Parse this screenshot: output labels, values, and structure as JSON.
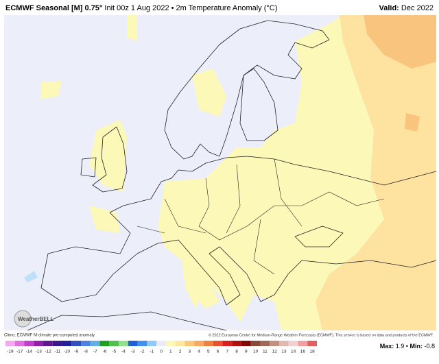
{
  "header": {
    "title_bold": "ECMWF Seasonal [M] 0.75°",
    "title_rest": "Init 00z 1 Aug 2022 • 2m Temperature Anomaly (°C)",
    "valid_label": "Valid:",
    "valid_value": "Dec 2022"
  },
  "logo": "WeatherBELL",
  "footer": {
    "climo": "Climo: ECMWF M-climate pre-computed anomaly",
    "copyright": "© 2022 European Centre for Medium-Range Weather Forecasts (ECMWF). This service is based on data and products of the ECMWF."
  },
  "colorbar": {
    "labels": [
      -19,
      -17,
      -14,
      -13,
      -12,
      -11,
      -10,
      -9,
      -8,
      -7,
      -6,
      -5,
      -4,
      -3,
      -2,
      -1,
      0,
      1,
      2,
      3,
      4,
      5,
      6,
      7,
      8,
      9,
      10,
      11,
      12,
      13,
      14,
      16,
      18
    ],
    "colors": [
      "#f5a8f0",
      "#e070e0",
      "#c040c8",
      "#9020a8",
      "#601890",
      "#3a1a8a",
      "#2020a0",
      "#3050c0",
      "#5080e0",
      "#60b0e0",
      "#20a020",
      "#50c050",
      "#90e090",
      "#2060d0",
      "#4090f0",
      "#90c8f8",
      "#e8ecfa",
      "#fcf8b8",
      "#fde8a0",
      "#fbc878",
      "#f8a860",
      "#f08040",
      "#e85030",
      "#d82020",
      "#b01010",
      "#800808",
      "#8a4a3a",
      "#a06a5a",
      "#c09080",
      "#e0b8b0",
      "#f0d0d0",
      "#f0a0a0",
      "#e06060"
    ]
  },
  "stats": {
    "max_label": "Max:",
    "max": 1.9,
    "separator": "•",
    "min_label": "Min:",
    "min": -0.8
  }
}
